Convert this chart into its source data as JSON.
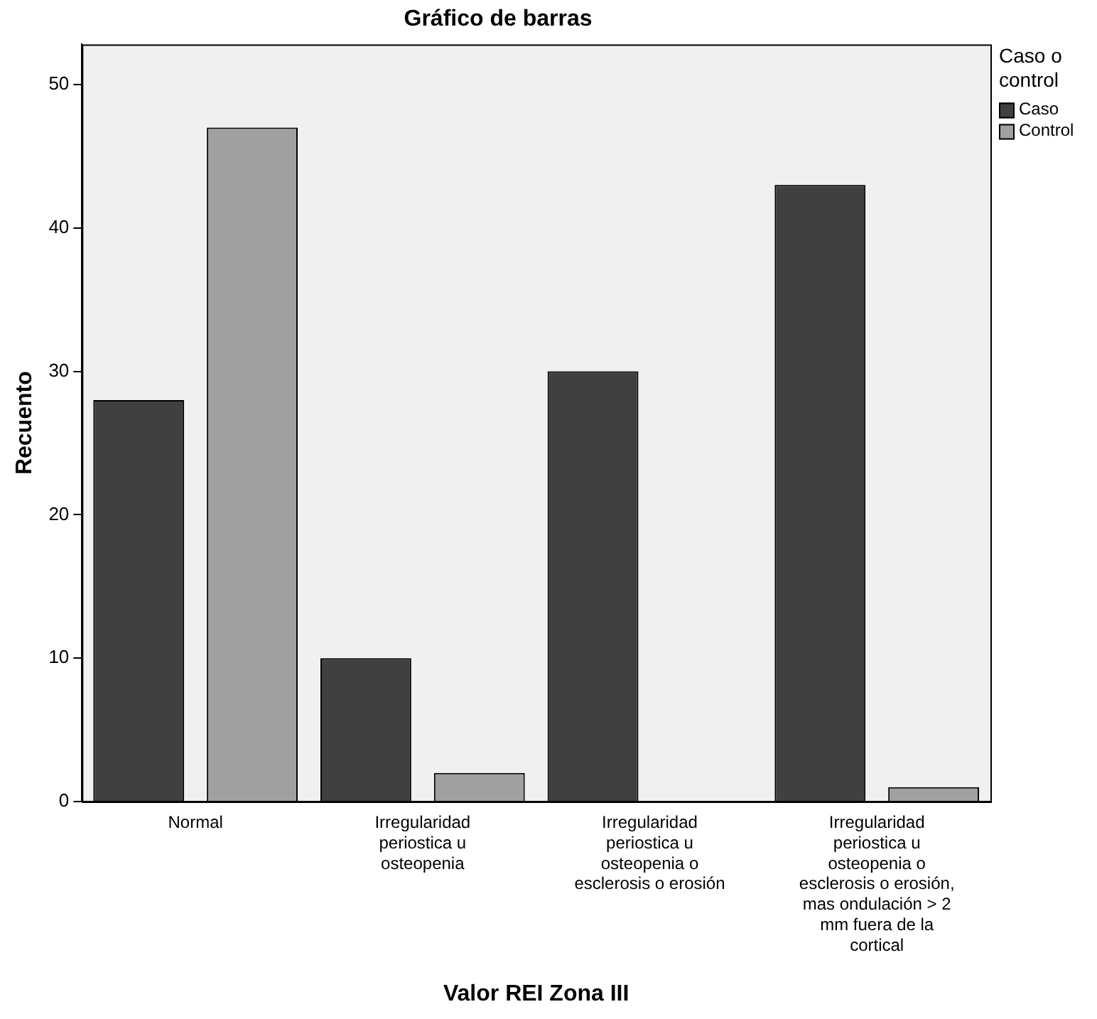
{
  "chart_data": {
    "type": "bar",
    "title": "Gráfico de barras",
    "xlabel": "Valor REI Zona III",
    "ylabel": "Recuento",
    "legend_title": "Caso o control",
    "legend": "top right",
    "categories": [
      "Normal",
      "Irregularidad periostica u osteopenia",
      "Irregularidad periostica u osteopenia o esclerosis o erosión",
      "Irregularidad periostica u osteopenia o esclerosis o erosión, mas ondulación > 2 mm fuera de la cortical"
    ],
    "series": [
      {
        "name": "Caso",
        "color": "#404040",
        "values": [
          28,
          10,
          30,
          43
        ]
      },
      {
        "name": "Control",
        "color": "#a0a0a0",
        "values": [
          47,
          2,
          0,
          1
        ]
      }
    ],
    "ylim": [
      0,
      52.8
    ],
    "yticks": [
      0,
      10,
      20,
      30,
      40,
      50
    ],
    "grid": false
  }
}
